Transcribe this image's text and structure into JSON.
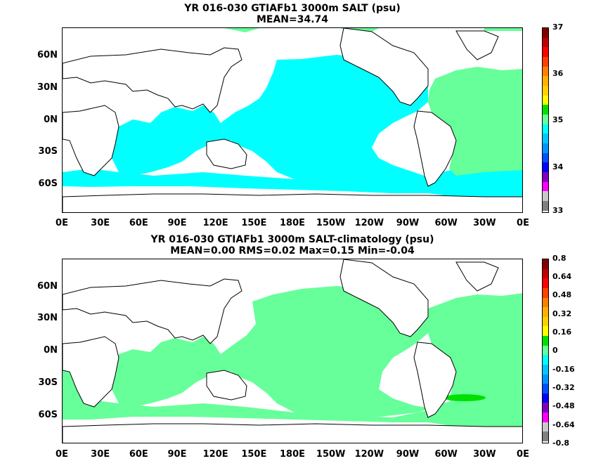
{
  "panels": [
    {
      "title_line1": "YR 016-030 GTIAFb1 3000m SALT (psu)",
      "title_line2": "MEAN=34.74",
      "lat_labels": [
        "60N",
        "30N",
        "0N",
        "30S",
        "60S"
      ],
      "lon_labels": [
        "0E",
        "30E",
        "60E",
        "90E",
        "120E",
        "150E",
        "180E",
        "150W",
        "120W",
        "90W",
        "60W",
        "30W",
        "0E"
      ],
      "colorbar": {
        "labels": [
          "37",
          "36",
          "35",
          "34",
          "33"
        ],
        "colors": [
          "#800000",
          "#c00000",
          "#ff0000",
          "#ff4000",
          "#ff8000",
          "#ffb000",
          "#ffd000",
          "#ffff00",
          "#00e000",
          "#66ff99",
          "#00ffff",
          "#00c8ff",
          "#0096ff",
          "#0050ff",
          "#0000ff",
          "#8000c0",
          "#ff00ff",
          "#c8c8c8",
          "#808080"
        ]
      },
      "field_colors": {
        "main": "#00ffff",
        "atlantic": "#66ff99"
      }
    },
    {
      "title_line1": "YR 016-030 GTIAFb1 3000m SALT-climatology (psu)",
      "title_line2": "MEAN=0.00   RMS=0.02   Max=0.15   Min=-0.04",
      "lat_labels": [
        "60N",
        "30N",
        "0N",
        "30S",
        "60S"
      ],
      "lon_labels": [
        "0E",
        "30E",
        "60E",
        "90E",
        "120E",
        "150E",
        "180E",
        "150W",
        "120W",
        "90W",
        "60W",
        "30W",
        "0E"
      ],
      "colorbar": {
        "labels": [
          "0.8",
          "0.64",
          "0.48",
          "0.32",
          "0.16",
          "0",
          "-0.16",
          "-0.32",
          "-0.48",
          "-0.64",
          "-0.8"
        ],
        "colors": [
          "#800000",
          "#c00000",
          "#ff0000",
          "#ff4000",
          "#ff8000",
          "#ffb000",
          "#ffd000",
          "#ffff00",
          "#00e000",
          "#66ff99",
          "#00ffff",
          "#00c8ff",
          "#0096ff",
          "#0050ff",
          "#0000ff",
          "#8000c0",
          "#ff00ff",
          "#c8c8c8",
          "#808080"
        ]
      },
      "field_colors": {
        "main": "#66ff99",
        "patch": "#00e000"
      }
    }
  ]
}
